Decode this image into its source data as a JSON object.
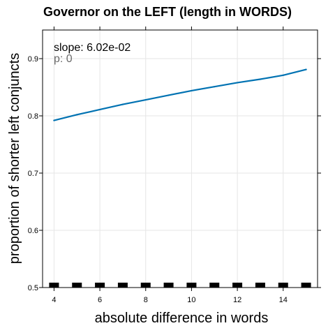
{
  "chart_data": {
    "type": "line",
    "title": "Governor on the LEFT (length in WORDS)",
    "xlabel": "absolute difference in words",
    "ylabel": "proportion of shorter left conjuncts",
    "xlim": [
      3.5,
      15.5
    ],
    "ylim": [
      0.5,
      0.95
    ],
    "x_ticks": [
      4,
      6,
      8,
      10,
      12,
      14
    ],
    "y_ticks": [
      0.5,
      0.6,
      0.7,
      0.8,
      0.9
    ],
    "grid": true,
    "series": [
      {
        "color": "#0072b2",
        "x": [
          4,
          5,
          6,
          7,
          8,
          9,
          10,
          11,
          12,
          13,
          14,
          15
        ],
        "y": [
          0.792,
          0.802,
          0.811,
          0.82,
          0.828,
          0.836,
          0.844,
          0.851,
          0.858,
          0.864,
          0.871,
          0.881
        ]
      }
    ],
    "rug": {
      "x": [
        4,
        5,
        6,
        7,
        8,
        9,
        10,
        11,
        12,
        13,
        14,
        15
      ],
      "color": "#000000"
    },
    "annotations": {
      "slope": "slope: 6.02e-02",
      "p": "p: 0"
    }
  }
}
